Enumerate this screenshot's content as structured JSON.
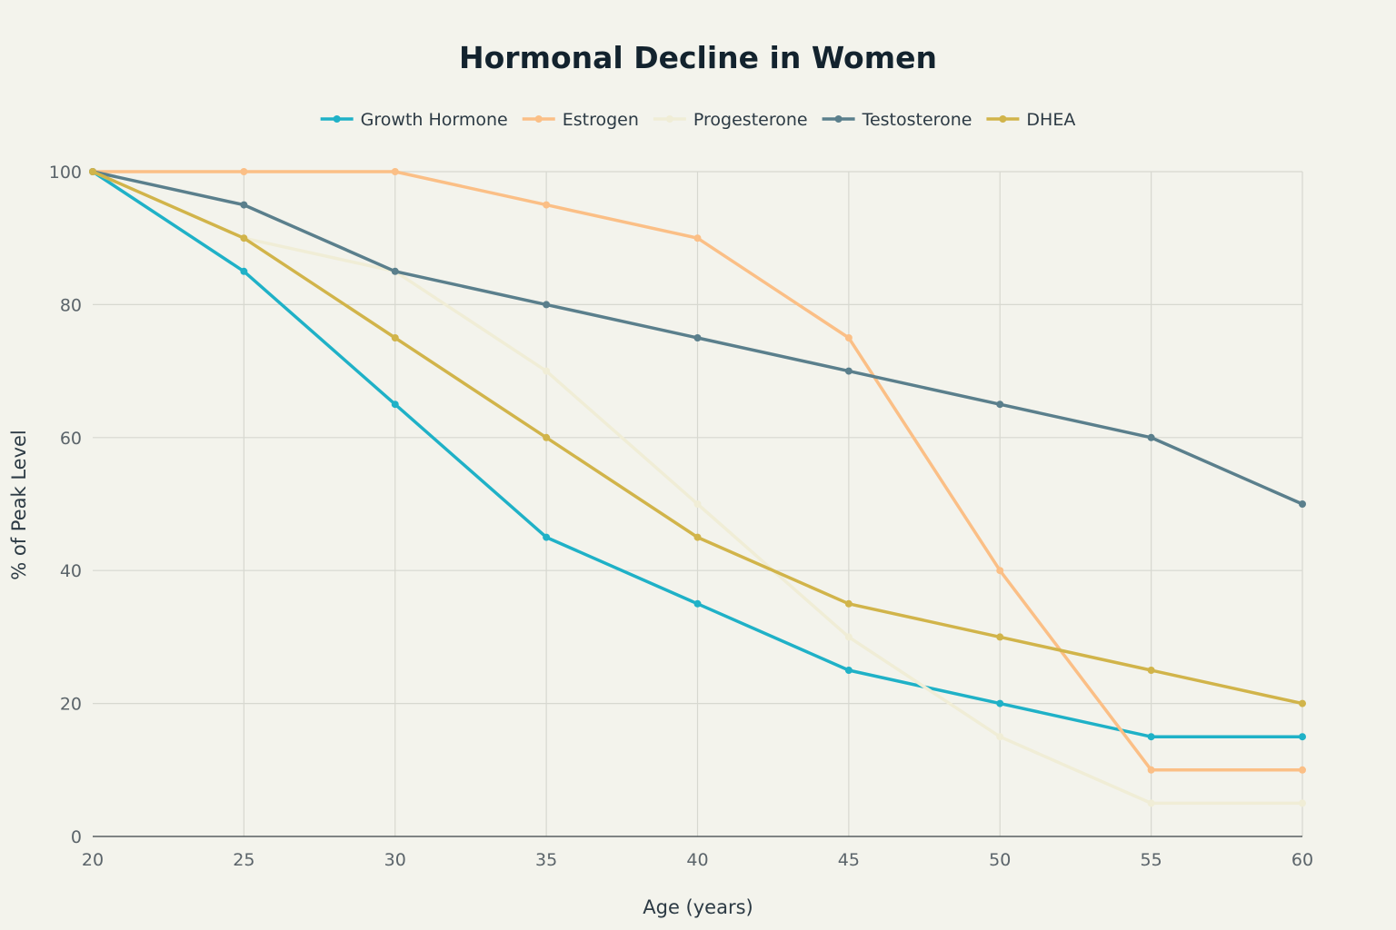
{
  "chart_data": {
    "type": "line",
    "title": "Hormonal Decline in Women",
    "xlabel": "Age (years)",
    "ylabel": "% of Peak Level",
    "x": [
      20,
      25,
      30,
      35,
      40,
      45,
      50,
      55,
      60
    ],
    "xlim": [
      20,
      60
    ],
    "ylim": [
      0,
      100
    ],
    "x_ticks": [
      "20",
      "25",
      "30",
      "35",
      "40",
      "45",
      "50",
      "55",
      "60"
    ],
    "y_ticks": [
      "0",
      "20",
      "40",
      "60",
      "80",
      "100"
    ],
    "grid": true,
    "legend_position": "top-center",
    "series": [
      {
        "name": "Growth Hormone",
        "color": "#1fb1c7",
        "values": [
          100,
          85,
          65,
          45,
          35,
          25,
          20,
          15,
          15
        ]
      },
      {
        "name": "Estrogen",
        "color": "#fbbf86",
        "values": [
          100,
          100,
          100,
          95,
          90,
          75,
          40,
          10,
          10
        ]
      },
      {
        "name": "Progesterone",
        "color": "#f0edd6",
        "values": [
          100,
          90,
          85,
          70,
          50,
          30,
          15,
          5,
          5
        ]
      },
      {
        "name": "Testosterone",
        "color": "#5a7f8c",
        "values": [
          100,
          95,
          85,
          80,
          75,
          70,
          65,
          60,
          50
        ]
      },
      {
        "name": "DHEA",
        "color": "#d1b44a",
        "values": [
          100,
          90,
          75,
          60,
          45,
          35,
          30,
          25,
          20
        ]
      }
    ]
  }
}
